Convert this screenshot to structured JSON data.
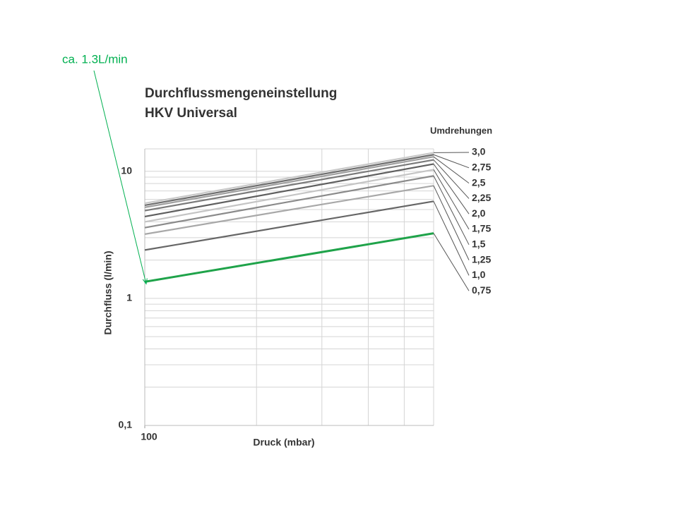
{
  "chart_data": {
    "type": "line",
    "title": "Durchflussmengeneinstellung",
    "subtitle": "HKV Universal",
    "x_label": "Druck (mbar)",
    "y_label": "Durchfluss (l/min)",
    "legend_title": "Umdrehungen",
    "x_log": true,
    "y_log": true,
    "grid": true,
    "x": [
      100,
      600
    ],
    "xlim": [
      100,
      600
    ],
    "xticks": [
      100
    ],
    "xminor": [
      200,
      300,
      400,
      500
    ],
    "ylim": [
      0.1,
      15
    ],
    "yticks": [
      {
        "value": 0.1,
        "label": "0,1"
      },
      1,
      10
    ],
    "yminor": [
      0.2,
      0.3,
      0.4,
      0.5,
      0.6,
      0.7,
      0.8,
      0.9,
      2,
      3,
      4,
      5,
      6,
      7,
      8,
      9
    ],
    "series": [
      {
        "name": "3,0",
        "color": "#c8c8c8",
        "values": [
          5.6,
          14.0
        ]
      },
      {
        "name": "2,75",
        "color": "#6e6e6e",
        "values": [
          5.4,
          13.5
        ]
      },
      {
        "name": "2,5",
        "color": "#a0a0a0",
        "values": [
          5.2,
          13.0
        ]
      },
      {
        "name": "2,25",
        "color": "#7a7a7a",
        "values": [
          4.9,
          12.3
        ]
      },
      {
        "name": "2,0",
        "color": "#5f5f5f",
        "values": [
          4.4,
          11.4
        ]
      },
      {
        "name": "1,75",
        "color": "#c4c4c4",
        "values": [
          4.0,
          10.3
        ]
      },
      {
        "name": "1,5",
        "color": "#8a8a8a",
        "values": [
          3.6,
          9.2
        ]
      },
      {
        "name": "1,25",
        "color": "#a8a8a8",
        "values": [
          3.2,
          7.7
        ]
      },
      {
        "name": "1,0",
        "color": "#666666",
        "values": [
          2.4,
          5.8
        ]
      },
      {
        "name": "0,75",
        "color": "#1fa34a",
        "values": [
          1.35,
          3.25
        ]
      }
    ],
    "annotations": [
      {
        "text": "ca. 1.3L/min",
        "color": "#00b050",
        "x": 100,
        "y": 1.3
      }
    ]
  }
}
